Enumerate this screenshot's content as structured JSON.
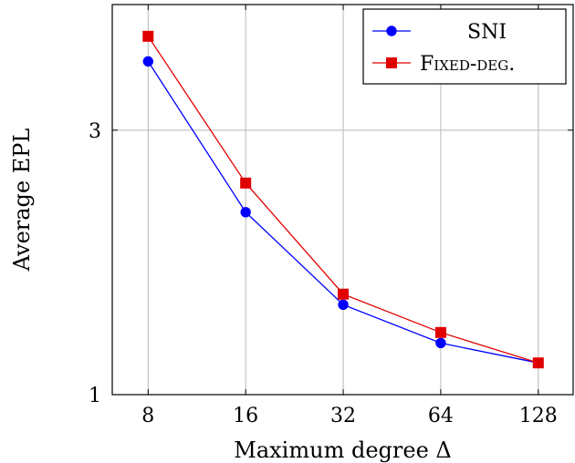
{
  "chart_data": {
    "type": "line",
    "title": "",
    "xlabel": "Maximum degree Δ",
    "ylabel": "Average EPL",
    "x": [
      8,
      16,
      32,
      64,
      128
    ],
    "x_ticks": [
      "8",
      "16",
      "32",
      "64",
      "128"
    ],
    "x_scale": "log2",
    "y_ticks": [
      1,
      3
    ],
    "y_tick_labels": [
      "1",
      "3"
    ],
    "ylim": [
      1,
      3.95
    ],
    "grid": true,
    "legend_position": "top-right",
    "series": [
      {
        "name": "SNI",
        "marker": "circle",
        "color": "#0000ff",
        "values": [
          3.52,
          2.38,
          1.68,
          1.39,
          1.24
        ]
      },
      {
        "name": "Fixed-deg.",
        "marker": "square",
        "color": "#e00000",
        "values": [
          3.71,
          2.6,
          1.76,
          1.47,
          1.24
        ]
      }
    ]
  }
}
